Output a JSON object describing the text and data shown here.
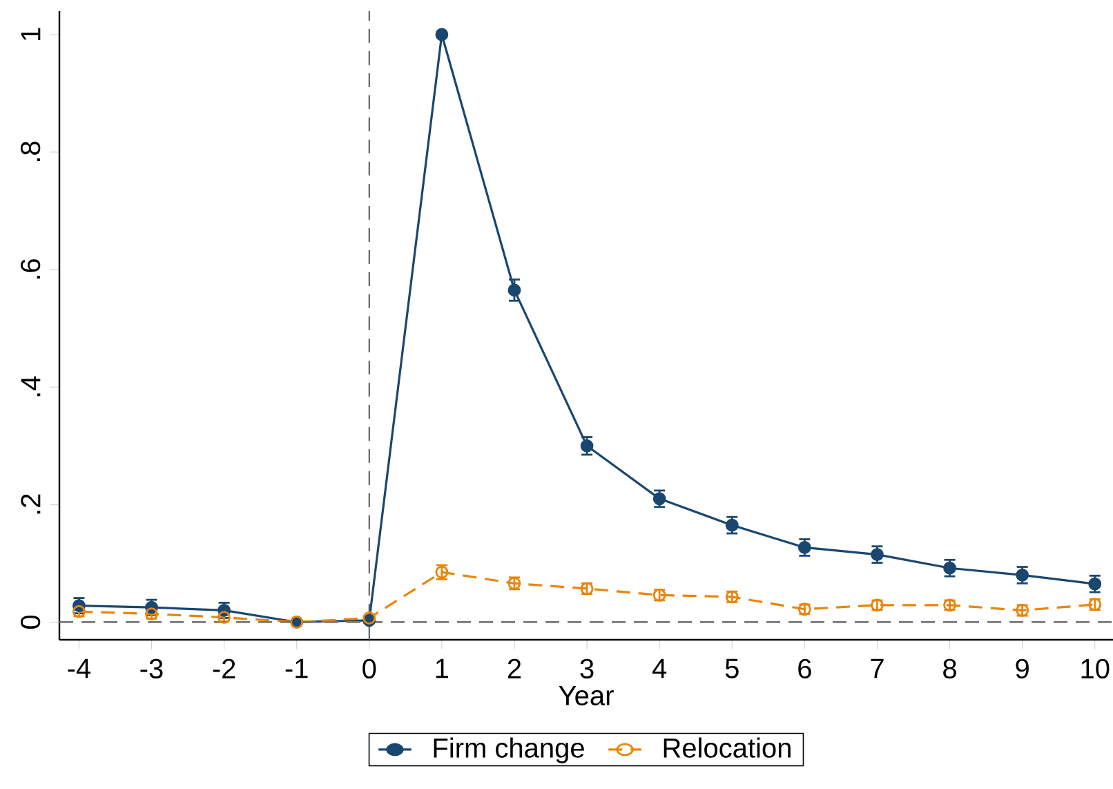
{
  "chart_data": {
    "type": "line",
    "xlabel": "Year",
    "x": [
      -4,
      -3,
      -2,
      -1,
      0,
      1,
      2,
      3,
      4,
      5,
      6,
      7,
      8,
      9,
      10
    ],
    "xlim": [
      -4.27,
      10.25
    ],
    "xticks": [
      -4,
      -3,
      -2,
      -1,
      0,
      1,
      2,
      3,
      4,
      5,
      6,
      7,
      8,
      9,
      10
    ],
    "ylim": [
      -0.03,
      1.04
    ],
    "yticks": [
      0,
      {
        "value": 0.2,
        "label": ".2"
      },
      {
        "value": 0.4,
        "label": ".4"
      },
      {
        "value": 0.6,
        "label": ".6"
      },
      {
        "value": 0.8,
        "label": ".8"
      },
      1
    ],
    "series": [
      {
        "name": "Firm change",
        "color": "#1a476f",
        "line_style": "solid",
        "values": [
          0.028,
          0.025,
          0.02,
          0,
          0.003,
          1.0,
          0.565,
          0.3,
          0.21,
          0.165,
          0.127,
          0.115,
          0.092,
          0.08,
          0.065
        ],
        "errors": [
          0.013,
          0.013,
          0.013,
          null,
          null,
          null,
          0.018,
          0.015,
          0.014,
          0.014,
          0.014,
          0.014,
          0.014,
          0.014,
          0.014
        ]
      },
      {
        "name": "Relocation",
        "color": "#e8850c",
        "line_style": "dashed",
        "values": [
          0.018,
          0.014,
          0.008,
          0,
          0.007,
          0.085,
          0.066,
          0.057,
          0.046,
          0.043,
          0.022,
          0.029,
          0.029,
          0.02,
          0.03
        ],
        "errors": [
          0.008,
          0.008,
          0.007,
          null,
          null,
          0.012,
          0.01,
          0.009,
          0.009,
          0.009,
          0.008,
          0.008,
          0.008,
          0.009,
          0.009
        ]
      }
    ],
    "ref_lines": [
      {
        "axis": "x",
        "value": 0,
        "color": "#555555",
        "line_style": "dashed"
      },
      {
        "axis": "y",
        "value": 0,
        "color": "#777777",
        "line_style": "dashed"
      }
    ],
    "marker": "circle",
    "legend": "bottom",
    "grid": false
  }
}
